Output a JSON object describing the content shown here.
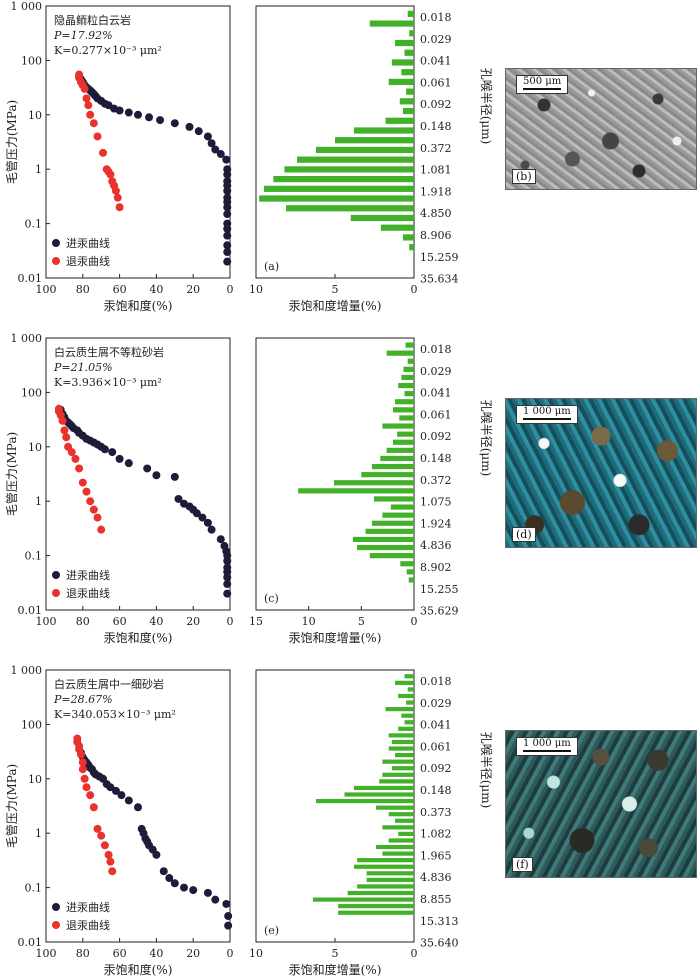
{
  "labels": {
    "y_left": "毛管压力(MPa)",
    "x_left": "汞饱和度(%)",
    "x_mid": "汞饱和度增量(%)",
    "y_right": "孔喉半径(μm)",
    "legend_in": "进汞曲线",
    "legend_out": "退汞曲线"
  },
  "colors": {
    "intrusion": "#1f1c3a",
    "withdrawal": "#e8322b",
    "bar": "#43b02a"
  },
  "panels": [
    {
      "id": "row1",
      "rock_name": "隐晶鲕粒白云岩",
      "porosity": "P=17.92%",
      "permeability": "K=0.277×10⁻³ μm²",
      "tag_left": "(a)",
      "tag_right": "(b)",
      "scale_text": "500 μm",
      "y_ticks": [
        "0.01",
        "0.1",
        "1",
        "10",
        "100",
        "1 000"
      ],
      "x_ticks": [
        "100",
        "80",
        "60",
        "40",
        "20",
        "0"
      ],
      "inc_ticks": [
        "10",
        "5",
        "0"
      ],
      "radius_labels": [
        "0.018",
        "0.029",
        "0.041",
        "0.061",
        "0.092",
        "0.148",
        "0.372",
        "1.081",
        "1.918",
        "4.850",
        "8.906",
        "15.259",
        "35.634"
      ]
    },
    {
      "id": "row2",
      "rock_name": "白云质生屑不等粒砂岩",
      "porosity": "P=21.05%",
      "permeability": "K=3.936×10⁻³ μm²",
      "tag_left": "(c)",
      "tag_right": "(d)",
      "scale_text": "1 000 μm",
      "y_ticks": [
        "0.01",
        "0.1",
        "1",
        "10",
        "100",
        "1 000"
      ],
      "x_ticks": [
        "100",
        "80",
        "60",
        "40",
        "20",
        "0"
      ],
      "inc_ticks": [
        "15",
        "10",
        "5",
        "0"
      ],
      "radius_labels": [
        "0.018",
        "0.029",
        "0.041",
        "0.061",
        "0.092",
        "0.148",
        "0.372",
        "1.075",
        "1.924",
        "4.836",
        "8.902",
        "15.255",
        "35.629"
      ]
    },
    {
      "id": "row3",
      "rock_name": "白云质生屑中一细砂岩",
      "porosity": "P=28.67%",
      "permeability": "K=340.053×10⁻³ μm²",
      "tag_left": "(e)",
      "tag_right": "(f)",
      "scale_text": "1 000 μm",
      "y_ticks": [
        "0.01",
        "0.1",
        "1",
        "10",
        "100",
        "1 000"
      ],
      "x_ticks": [
        "100",
        "80",
        "60",
        "40",
        "20",
        "0"
      ],
      "inc_ticks": [
        "10",
        "5",
        "0"
      ],
      "radius_labels": [
        "0.018",
        "0.029",
        "0.041",
        "0.061",
        "0.092",
        "0.148",
        "0.373",
        "1.082",
        "1.965",
        "4.836",
        "8.855",
        "15.313",
        "35.640"
      ]
    }
  ],
  "chart_data": [
    {
      "type": "scatter",
      "title": "隐晶鲕粒白云岩",
      "xlabel": "汞饱和度(%)",
      "ylabel": "毛管压力(MPa)",
      "x_reversed": true,
      "xlim": [
        100,
        0
      ],
      "ylim": [
        0.01,
        1000
      ],
      "y_scale": "log",
      "series": [
        {
          "name": "进汞曲线",
          "x": [
            82,
            81,
            80,
            79,
            78,
            77,
            76,
            75,
            74,
            73,
            72,
            70,
            68,
            66,
            63,
            60,
            55,
            50,
            44,
            38,
            30,
            22,
            17,
            12,
            10,
            8,
            5,
            2,
            1.5,
            1.5,
            1.5,
            1.5,
            1.5,
            1.5,
            1.5,
            1.5,
            1.5,
            1.5,
            1.5,
            1.5,
            1.5,
            1.5,
            1.5
          ],
          "y": [
            50,
            45,
            40,
            35,
            32,
            30,
            28,
            26,
            24,
            22,
            20,
            18,
            16,
            15,
            13,
            12,
            11,
            10,
            9,
            8,
            7,
            6,
            5,
            4,
            3,
            2.3,
            1.9,
            1.5,
            1.0,
            0.8,
            0.6,
            0.5,
            0.4,
            0.3,
            0.25,
            0.2,
            0.15,
            0.1,
            0.08,
            0.06,
            0.04,
            0.03,
            0.02
          ]
        },
        {
          "name": "退汞曲线",
          "x": [
            82,
            82,
            81,
            80,
            79,
            78,
            77,
            76,
            74,
            72,
            69,
            67,
            66,
            65,
            64,
            63,
            62,
            61,
            60
          ],
          "y": [
            55,
            48,
            40,
            35,
            30,
            20,
            15,
            10,
            7,
            4,
            2.0,
            1.0,
            0.9,
            0.8,
            0.6,
            0.5,
            0.4,
            0.3,
            0.2
          ]
        }
      ]
    },
    {
      "type": "bar",
      "xlabel": "汞饱和度增量(%)",
      "ylabel": "孔喉半径(μm)",
      "xlim": [
        10,
        0
      ],
      "orientation": "horizontal",
      "values": [
        0.4,
        2.8,
        0.3,
        1.2,
        0.6,
        1.4,
        0.8,
        1.6,
        0.5,
        0.9,
        0.7,
        1.8,
        3.8,
        5.0,
        6.2,
        7.4,
        8.2,
        8.9,
        9.5,
        9.8,
        8.1,
        4.0,
        2.1,
        0.7,
        0.3
      ]
    },
    {
      "type": "scatter",
      "title": "白云质生屑不等粒砂岩",
      "xlabel": "汞饱和度(%)",
      "ylabel": "毛管压力(MPa)",
      "x_reversed": true,
      "xlim": [
        100,
        0
      ],
      "ylim": [
        0.01,
        1000
      ],
      "y_scale": "log",
      "series": [
        {
          "name": "进汞曲线",
          "x": [
            92,
            91,
            90,
            89,
            88,
            87,
            86,
            85,
            83,
            82,
            80,
            78,
            76,
            74,
            72,
            70,
            68,
            64,
            60,
            55,
            45,
            40,
            30,
            28,
            25,
            22,
            20,
            18,
            15,
            12,
            10,
            5,
            3,
            2,
            1.5,
            1.5,
            1.5,
            1.5,
            1.5,
            1.5,
            1.5
          ],
          "y": [
            48,
            40,
            35,
            30,
            28,
            26,
            24,
            22,
            20,
            18,
            16,
            14,
            13,
            12,
            11,
            10,
            9,
            8,
            6,
            5,
            4,
            3,
            2.8,
            1.1,
            0.9,
            0.8,
            0.7,
            0.6,
            0.5,
            0.4,
            0.3,
            0.2,
            0.15,
            0.12,
            0.1,
            0.08,
            0.06,
            0.05,
            0.04,
            0.03,
            0.02
          ]
        },
        {
          "name": "退汞曲线",
          "x": [
            93,
            93,
            92,
            91,
            90,
            89,
            88,
            86,
            84,
            82,
            80,
            78,
            76,
            74,
            72,
            70
          ],
          "y": [
            50,
            45,
            38,
            30,
            20,
            15,
            10,
            8,
            6,
            4,
            2.2,
            1.5,
            1.0,
            0.7,
            0.5,
            0.3
          ]
        }
      ]
    },
    {
      "type": "bar",
      "xlabel": "汞饱和度增量(%)",
      "ylabel": "孔喉半径(μm)",
      "xlim": [
        15,
        0
      ],
      "orientation": "horizontal",
      "values": [
        0.8,
        2.6,
        0.6,
        1.0,
        1.2,
        1.5,
        0.9,
        1.8,
        2.0,
        1.4,
        3.0,
        1.6,
        2.0,
        2.6,
        3.2,
        4.0,
        5.0,
        7.6,
        11.0,
        3.8,
        2.2,
        3.0,
        4.0,
        4.6,
        5.8,
        5.4,
        4.2,
        1.3,
        0.7,
        0.5
      ]
    },
    {
      "type": "scatter",
      "title": "白云质生屑中一细砂岩",
      "xlabel": "汞饱和度(%)",
      "ylabel": "毛管压力(MPa)",
      "x_reversed": true,
      "xlim": [
        100,
        0
      ],
      "ylim": [
        0.01,
        1000
      ],
      "y_scale": "log",
      "series": [
        {
          "name": "进汞曲线",
          "x": [
            81,
            80,
            79,
            78,
            77,
            76,
            75,
            74,
            73,
            71,
            69,
            67,
            65,
            62,
            59,
            55,
            50,
            48,
            47,
            46,
            45,
            44,
            42,
            40,
            36,
            33,
            30,
            25,
            20,
            12,
            8,
            2,
            1,
            1
          ],
          "y": [
            30,
            25,
            22,
            20,
            18,
            16,
            15,
            13,
            12,
            11,
            10,
            8,
            7,
            6,
            5,
            4,
            3,
            1.2,
            1.0,
            0.8,
            0.7,
            0.6,
            0.5,
            0.4,
            0.2,
            0.15,
            0.12,
            0.1,
            0.09,
            0.08,
            0.06,
            0.05,
            0.03,
            0.02
          ]
        },
        {
          "name": "退汞曲线",
          "x": [
            83,
            83,
            82,
            82,
            81,
            80,
            80,
            79,
            78,
            76,
            74,
            72,
            70,
            68,
            66,
            65,
            64
          ],
          "y": [
            55,
            48,
            40,
            35,
            28,
            20,
            15,
            10,
            7,
            5,
            3,
            1.2,
            0.9,
            0.6,
            0.4,
            0.3,
            0.2
          ]
        }
      ]
    },
    {
      "type": "bar",
      "xlabel": "汞饱和度增量(%)",
      "ylabel": "孔喉半径(μm)",
      "xlim": [
        10,
        0
      ],
      "orientation": "horizontal",
      "values": [
        0.6,
        1.2,
        0.4,
        1.0,
        0.5,
        1.8,
        0.8,
        0.6,
        1.0,
        1.6,
        1.4,
        1.6,
        1.2,
        2.0,
        1.4,
        2.0,
        2.2,
        3.8,
        4.4,
        6.2,
        2.4,
        1.6,
        1.2,
        2.0,
        1.0,
        1.6,
        2.4,
        2.0,
        3.6,
        3.8,
        3.0,
        3.0,
        3.6,
        4.2,
        6.4,
        4.8,
        4.8
      ]
    }
  ]
}
